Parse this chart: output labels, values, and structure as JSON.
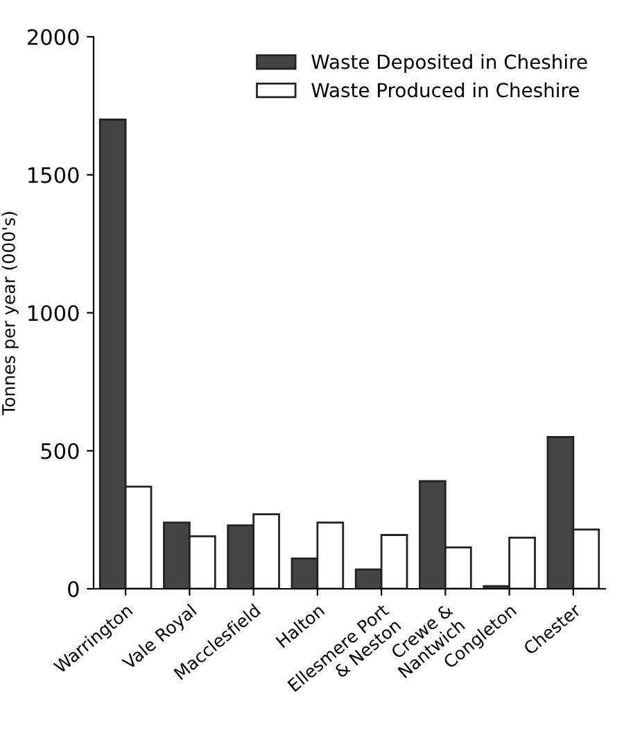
{
  "chart_data": {
    "type": "bar",
    "ylabel": "Tonnes per year (000's)",
    "categories": [
      "Warrington",
      "Vale Royal",
      "Macclesfield",
      "Halton",
      "Ellesmere Port\n& Neston",
      "Crewe &\nNantwich",
      "Congleton",
      "Chester"
    ],
    "series": [
      {
        "name": "Waste Deposited in Cheshire",
        "color": "#444444",
        "values": [
          1700,
          240,
          230,
          110,
          70,
          390,
          10,
          550
        ]
      },
      {
        "name": "Waste Produced in Cheshire",
        "color": "#ffffff",
        "values": [
          370,
          190,
          270,
          240,
          195,
          150,
          185,
          215
        ]
      }
    ],
    "ylim": [
      0,
      2000
    ],
    "yticks": [
      0,
      500,
      1000,
      1500,
      2000
    ],
    "grid": false,
    "legend": "top right"
  }
}
